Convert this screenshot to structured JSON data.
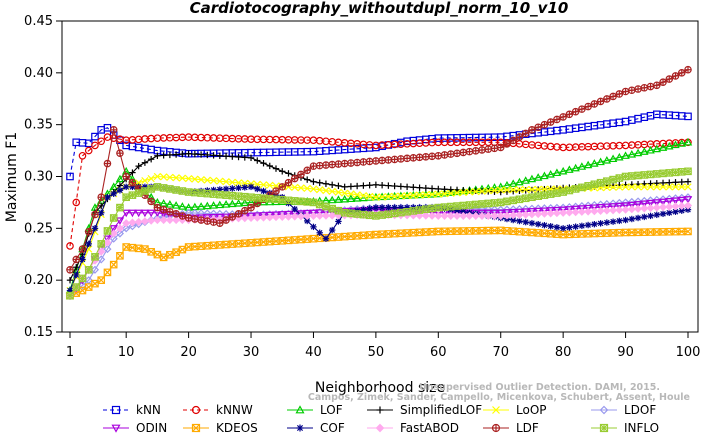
{
  "chart_data": {
    "type": "line",
    "title": "Cardiotocography_withoutdupl_norm_10_v10",
    "xlabel": "Neighborhood size",
    "ylabel": "Maximum F1",
    "xlim": [
      1,
      100
    ],
    "ylim": [
      0.15,
      0.45
    ],
    "x_ticks": [
      1,
      10,
      20,
      30,
      40,
      50,
      60,
      70,
      80,
      90,
      100
    ],
    "y_ticks": [
      "0.15",
      "0.20",
      "0.25",
      "0.30",
      "0.35",
      "0.40",
      "0.45"
    ],
    "grid": false,
    "legend_position": "bottom",
    "citation": [
      "Campos, Zimek, Sander, Campello, Micenkova, Schubert, Assent, Houle",
      "Unsupervised Outlier Detection. DAMI, 2015."
    ],
    "series": [
      {
        "name": "kNN",
        "color": "#0000dd",
        "marker": "square",
        "dash": "4,3",
        "points": [
          [
            1,
            0.3
          ],
          [
            2,
            0.333
          ],
          [
            4,
            0.332
          ],
          [
            6,
            0.345
          ],
          [
            7,
            0.347
          ],
          [
            8,
            0.34
          ],
          [
            10,
            0.33
          ],
          [
            15,
            0.325
          ],
          [
            20,
            0.322
          ],
          [
            30,
            0.323
          ],
          [
            40,
            0.324
          ],
          [
            50,
            0.328
          ],
          [
            55,
            0.334
          ],
          [
            60,
            0.337
          ],
          [
            70,
            0.338
          ],
          [
            80,
            0.345
          ],
          [
            90,
            0.353
          ],
          [
            95,
            0.36
          ],
          [
            100,
            0.358
          ]
        ]
      },
      {
        "name": "kNNW",
        "color": "#e00000",
        "marker": "circle",
        "dash": "4,3",
        "points": [
          [
            1,
            0.233
          ],
          [
            2,
            0.275
          ],
          [
            3,
            0.32
          ],
          [
            5,
            0.33
          ],
          [
            7,
            0.338
          ],
          [
            10,
            0.335
          ],
          [
            15,
            0.337
          ],
          [
            20,
            0.338
          ],
          [
            30,
            0.336
          ],
          [
            40,
            0.335
          ],
          [
            50,
            0.33
          ],
          [
            60,
            0.333
          ],
          [
            70,
            0.333
          ],
          [
            80,
            0.328
          ],
          [
            90,
            0.33
          ],
          [
            100,
            0.333
          ]
        ]
      },
      {
        "name": "LOF",
        "color": "#00cc00",
        "marker": "triangle",
        "dash": "",
        "points": [
          [
            1,
            0.19
          ],
          [
            3,
            0.23
          ],
          [
            5,
            0.27
          ],
          [
            8,
            0.29
          ],
          [
            10,
            0.305
          ],
          [
            12,
            0.29
          ],
          [
            15,
            0.275
          ],
          [
            20,
            0.27
          ],
          [
            30,
            0.275
          ],
          [
            40,
            0.276
          ],
          [
            50,
            0.28
          ],
          [
            60,
            0.283
          ],
          [
            70,
            0.29
          ],
          [
            80,
            0.305
          ],
          [
            90,
            0.32
          ],
          [
            100,
            0.333
          ]
        ]
      },
      {
        "name": "SimplifiedLOF",
        "color": "#000000",
        "marker": "plus",
        "dash": "",
        "points": [
          [
            1,
            0.2
          ],
          [
            3,
            0.225
          ],
          [
            5,
            0.265
          ],
          [
            8,
            0.285
          ],
          [
            12,
            0.31
          ],
          [
            15,
            0.32
          ],
          [
            20,
            0.322
          ],
          [
            30,
            0.318
          ],
          [
            35,
            0.305
          ],
          [
            40,
            0.295
          ],
          [
            45,
            0.29
          ],
          [
            50,
            0.292
          ],
          [
            60,
            0.288
          ],
          [
            70,
            0.285
          ],
          [
            80,
            0.289
          ],
          [
            90,
            0.292
          ],
          [
            100,
            0.295
          ]
        ]
      },
      {
        "name": "LoOP",
        "color": "#ffff00",
        "marker": "cross",
        "dash": "",
        "points": [
          [
            1,
            0.19
          ],
          [
            4,
            0.23
          ],
          [
            7,
            0.28
          ],
          [
            10,
            0.29
          ],
          [
            15,
            0.3
          ],
          [
            20,
            0.298
          ],
          [
            30,
            0.293
          ],
          [
            40,
            0.288
          ],
          [
            50,
            0.28
          ],
          [
            60,
            0.283
          ],
          [
            70,
            0.287
          ],
          [
            80,
            0.288
          ],
          [
            90,
            0.29
          ],
          [
            100,
            0.29
          ]
        ]
      },
      {
        "name": "LDOF",
        "color": "#9999ee",
        "marker": "diamond",
        "dash": "",
        "points": [
          [
            1,
            0.185
          ],
          [
            4,
            0.2
          ],
          [
            8,
            0.24
          ],
          [
            10,
            0.25
          ],
          [
            15,
            0.26
          ],
          [
            20,
            0.265
          ],
          [
            30,
            0.263
          ],
          [
            40,
            0.265
          ],
          [
            50,
            0.27
          ],
          [
            60,
            0.27
          ],
          [
            70,
            0.268
          ],
          [
            80,
            0.27
          ],
          [
            90,
            0.275
          ],
          [
            100,
            0.28
          ]
        ]
      },
      {
        "name": "ODIN",
        "color": "#aa00dd",
        "marker": "tri-down",
        "dash": "",
        "points": [
          [
            1,
            0.185
          ],
          [
            3,
            0.2
          ],
          [
            5,
            0.22
          ],
          [
            8,
            0.25
          ],
          [
            10,
            0.265
          ],
          [
            15,
            0.265
          ],
          [
            20,
            0.26
          ],
          [
            30,
            0.262
          ],
          [
            40,
            0.265
          ],
          [
            50,
            0.268
          ],
          [
            60,
            0.265
          ],
          [
            70,
            0.265
          ],
          [
            80,
            0.268
          ],
          [
            90,
            0.272
          ],
          [
            100,
            0.278
          ]
        ]
      },
      {
        "name": "KDEOS",
        "color": "#ffaa00",
        "marker": "square-x",
        "dash": "",
        "points": [
          [
            1,
            0.185
          ],
          [
            3,
            0.19
          ],
          [
            6,
            0.2
          ],
          [
            8,
            0.215
          ],
          [
            10,
            0.232
          ],
          [
            13,
            0.23
          ],
          [
            16,
            0.222
          ],
          [
            20,
            0.232
          ],
          [
            30,
            0.236
          ],
          [
            40,
            0.24
          ],
          [
            50,
            0.244
          ],
          [
            60,
            0.247
          ],
          [
            70,
            0.248
          ],
          [
            80,
            0.244
          ],
          [
            90,
            0.246
          ],
          [
            100,
            0.247
          ]
        ]
      },
      {
        "name": "COF",
        "color": "#000088",
        "marker": "asterisk",
        "dash": "",
        "points": [
          [
            1,
            0.19
          ],
          [
            4,
            0.235
          ],
          [
            7,
            0.28
          ],
          [
            10,
            0.29
          ],
          [
            15,
            0.29
          ],
          [
            20,
            0.285
          ],
          [
            30,
            0.29
          ],
          [
            35,
            0.28
          ],
          [
            42,
            0.24
          ],
          [
            45,
            0.265
          ],
          [
            50,
            0.27
          ],
          [
            60,
            0.27
          ],
          [
            70,
            0.26
          ],
          [
            80,
            0.25
          ],
          [
            90,
            0.258
          ],
          [
            100,
            0.268
          ]
        ]
      },
      {
        "name": "FastABOD",
        "color": "#ffaaee",
        "marker": "diamond-fill",
        "dash": "",
        "points": [
          [
            1,
            0.185
          ],
          [
            4,
            0.21
          ],
          [
            8,
            0.245
          ],
          [
            10,
            0.255
          ],
          [
            15,
            0.258
          ],
          [
            20,
            0.258
          ],
          [
            30,
            0.26
          ],
          [
            40,
            0.262
          ],
          [
            50,
            0.263
          ],
          [
            60,
            0.262
          ],
          [
            70,
            0.262
          ],
          [
            80,
            0.265
          ],
          [
            90,
            0.268
          ],
          [
            100,
            0.272
          ]
        ]
      },
      {
        "name": "LDF",
        "color": "#aa2222",
        "marker": "circle-plus",
        "dash": "",
        "points": [
          [
            1,
            0.21
          ],
          [
            3,
            0.23
          ],
          [
            6,
            0.28
          ],
          [
            8,
            0.345
          ],
          [
            10,
            0.3
          ],
          [
            15,
            0.27
          ],
          [
            20,
            0.26
          ],
          [
            25,
            0.255
          ],
          [
            30,
            0.27
          ],
          [
            40,
            0.31
          ],
          [
            50,
            0.315
          ],
          [
            60,
            0.32
          ],
          [
            70,
            0.328
          ],
          [
            75,
            0.345
          ],
          [
            85,
            0.37
          ],
          [
            90,
            0.382
          ],
          [
            95,
            0.388
          ],
          [
            100,
            0.403
          ]
        ]
      },
      {
        "name": "INFLO",
        "color": "#99cc33",
        "marker": "square-star",
        "dash": "",
        "points": [
          [
            1,
            0.185
          ],
          [
            4,
            0.21
          ],
          [
            8,
            0.26
          ],
          [
            10,
            0.28
          ],
          [
            15,
            0.29
          ],
          [
            20,
            0.285
          ],
          [
            30,
            0.28
          ],
          [
            40,
            0.275
          ],
          [
            45,
            0.265
          ],
          [
            50,
            0.262
          ],
          [
            60,
            0.27
          ],
          [
            70,
            0.275
          ],
          [
            80,
            0.285
          ],
          [
            90,
            0.3
          ],
          [
            100,
            0.305
          ]
        ]
      }
    ]
  }
}
